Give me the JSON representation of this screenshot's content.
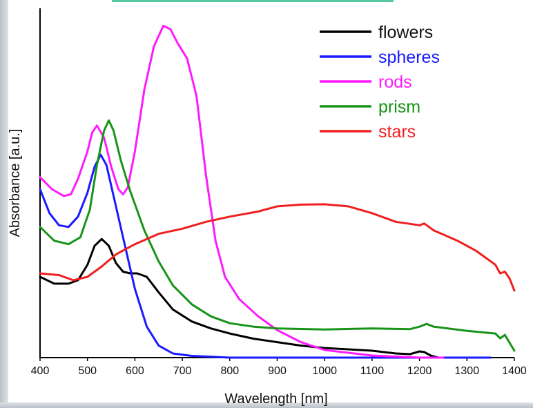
{
  "chart_data": {
    "type": "line",
    "title": "",
    "xlabel": "Wavelength [nm]",
    "ylabel": "Absorbance [a.u.]",
    "xlim": [
      400,
      1400
    ],
    "ylim": [
      0,
      1
    ],
    "x_ticks": [
      "400",
      "500",
      "600",
      "700",
      "800",
      "900",
      "1000",
      "1100",
      "1200",
      "1300",
      "1400"
    ],
    "y_ticks": [],
    "grid": false,
    "legend": "top-right",
    "series": [
      {
        "name": "flowers",
        "color": "#000000",
        "points": [
          [
            400,
            0.235
          ],
          [
            430,
            0.215
          ],
          [
            460,
            0.215
          ],
          [
            480,
            0.225
          ],
          [
            500,
            0.27
          ],
          [
            515,
            0.325
          ],
          [
            530,
            0.345
          ],
          [
            545,
            0.325
          ],
          [
            560,
            0.275
          ],
          [
            575,
            0.25
          ],
          [
            590,
            0.245
          ],
          [
            605,
            0.245
          ],
          [
            625,
            0.235
          ],
          [
            650,
            0.19
          ],
          [
            680,
            0.14
          ],
          [
            720,
            0.105
          ],
          [
            760,
            0.085
          ],
          [
            800,
            0.07
          ],
          [
            850,
            0.055
          ],
          [
            900,
            0.045
          ],
          [
            950,
            0.035
          ],
          [
            1000,
            0.028
          ],
          [
            1100,
            0.02
          ],
          [
            1150,
            0.012
          ],
          [
            1180,
            0.01
          ],
          [
            1200,
            0.018
          ],
          [
            1210,
            0.016
          ],
          [
            1225,
            0.005
          ],
          [
            1240,
            0.0
          ]
        ]
      },
      {
        "name": "spheres",
        "color": "#1a1aff",
        "points": [
          [
            400,
            0.49
          ],
          [
            420,
            0.42
          ],
          [
            440,
            0.385
          ],
          [
            460,
            0.38
          ],
          [
            480,
            0.41
          ],
          [
            500,
            0.48
          ],
          [
            515,
            0.555
          ],
          [
            528,
            0.59
          ],
          [
            540,
            0.56
          ],
          [
            555,
            0.47
          ],
          [
            575,
            0.35
          ],
          [
            600,
            0.2
          ],
          [
            625,
            0.09
          ],
          [
            650,
            0.035
          ],
          [
            680,
            0.012
          ],
          [
            720,
            0.005
          ],
          [
            800,
            0.0
          ],
          [
            1350,
            0.0
          ]
        ]
      },
      {
        "name": "rods",
        "color": "#ff1aff",
        "points": [
          [
            400,
            0.525
          ],
          [
            425,
            0.49
          ],
          [
            450,
            0.47
          ],
          [
            465,
            0.475
          ],
          [
            480,
            0.52
          ],
          [
            500,
            0.6
          ],
          [
            510,
            0.655
          ],
          [
            520,
            0.675
          ],
          [
            535,
            0.64
          ],
          [
            550,
            0.555
          ],
          [
            565,
            0.49
          ],
          [
            575,
            0.475
          ],
          [
            585,
            0.495
          ],
          [
            600,
            0.6
          ],
          [
            620,
            0.78
          ],
          [
            640,
            0.905
          ],
          [
            660,
            0.965
          ],
          [
            675,
            0.955
          ],
          [
            690,
            0.915
          ],
          [
            710,
            0.87
          ],
          [
            730,
            0.76
          ],
          [
            750,
            0.53
          ],
          [
            770,
            0.34
          ],
          [
            790,
            0.235
          ],
          [
            820,
            0.17
          ],
          [
            860,
            0.12
          ],
          [
            900,
            0.08
          ],
          [
            950,
            0.045
          ],
          [
            1000,
            0.022
          ],
          [
            1100,
            0.006
          ],
          [
            1200,
            0.0
          ],
          [
            1250,
            0.0
          ]
        ]
      },
      {
        "name": "prism",
        "color": "#179417",
        "points": [
          [
            400,
            0.38
          ],
          [
            430,
            0.34
          ],
          [
            460,
            0.33
          ],
          [
            485,
            0.35
          ],
          [
            505,
            0.43
          ],
          [
            520,
            0.56
          ],
          [
            535,
            0.66
          ],
          [
            545,
            0.69
          ],
          [
            555,
            0.66
          ],
          [
            570,
            0.575
          ],
          [
            590,
            0.485
          ],
          [
            620,
            0.37
          ],
          [
            650,
            0.28
          ],
          [
            680,
            0.21
          ],
          [
            720,
            0.155
          ],
          [
            760,
            0.12
          ],
          [
            800,
            0.1
          ],
          [
            850,
            0.09
          ],
          [
            900,
            0.085
          ],
          [
            1000,
            0.082
          ],
          [
            1100,
            0.085
          ],
          [
            1180,
            0.083
          ],
          [
            1200,
            0.09
          ],
          [
            1215,
            0.098
          ],
          [
            1230,
            0.09
          ],
          [
            1300,
            0.078
          ],
          [
            1360,
            0.07
          ],
          [
            1370,
            0.056
          ],
          [
            1380,
            0.066
          ],
          [
            1400,
            0.02
          ]
        ]
      },
      {
        "name": "stars",
        "color": "#f01e1e",
        "points": [
          [
            400,
            0.245
          ],
          [
            440,
            0.24
          ],
          [
            470,
            0.225
          ],
          [
            500,
            0.235
          ],
          [
            530,
            0.265
          ],
          [
            560,
            0.3
          ],
          [
            600,
            0.33
          ],
          [
            650,
            0.36
          ],
          [
            700,
            0.375
          ],
          [
            750,
            0.395
          ],
          [
            800,
            0.41
          ],
          [
            860,
            0.425
          ],
          [
            900,
            0.44
          ],
          [
            950,
            0.445
          ],
          [
            1000,
            0.446
          ],
          [
            1050,
            0.44
          ],
          [
            1100,
            0.42
          ],
          [
            1150,
            0.395
          ],
          [
            1200,
            0.385
          ],
          [
            1210,
            0.39
          ],
          [
            1230,
            0.37
          ],
          [
            1280,
            0.34
          ],
          [
            1320,
            0.31
          ],
          [
            1360,
            0.27
          ],
          [
            1370,
            0.245
          ],
          [
            1380,
            0.25
          ],
          [
            1390,
            0.23
          ],
          [
            1400,
            0.195
          ]
        ]
      }
    ]
  }
}
